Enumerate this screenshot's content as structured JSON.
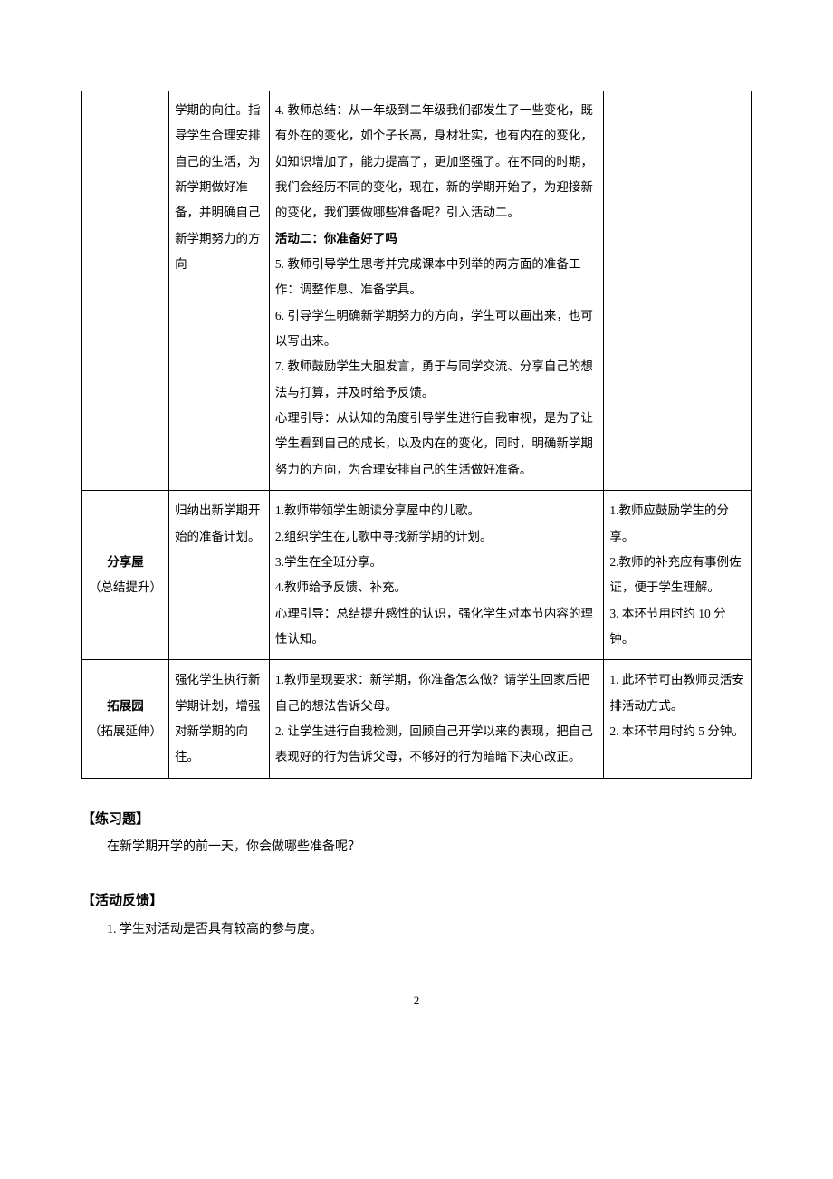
{
  "table": {
    "row1": {
      "col2": "学期的向往。指导学生合理安排自己的生活，为新学期做好准备，并明确自己新学期努力的方向",
      "col3": {
        "item4": "4. 教师总结：从一年级到二年级我们都发生了一些变化，既有外在的变化，如个子长高，身材壮实，也有内在的变化，如知识增加了，能力提高了，更加坚强了。在不同的时期，我们会经历不同的变化，现在，新的学期开始了，为迎接新的变化，我们要做哪些准备呢？引入活动二。",
        "activity_title": "活动二：你准备好了吗",
        "item5": "5. 教师引导学生思考并完成课本中列举的两方面的准备工作：调整作息、准备学具。",
        "item6": "6. 引导学生明确新学期努力的方向，学生可以画出来，也可以写出来。",
        "item7": "7. 教师鼓励学生大胆发言，勇于与同学交流、分享自己的想法与打算，并及时给予反馈。",
        "guide": "心理引导：从认知的角度引导学生进行自我审视，是为了让学生看到自己的成长，以及内在的变化，同时，明确新学期努力的方向，为合理安排自己的生活做好准备。"
      }
    },
    "row2": {
      "col1_title": "分享屋",
      "col1_sub": "（总结提升）",
      "col2": "归纳出新学期开始的准备计划。",
      "col3": {
        "item1": "1.教师带领学生朗读分享屋中的儿歌。",
        "item2": "2.组织学生在儿歌中寻找新学期的计划。",
        "item3": "3.学生在全班分享。",
        "item4": "4.教师给予反馈、补充。",
        "guide": "心理引导：总结提升感性的认识，强化学生对本节内容的理性认知。"
      },
      "col4": {
        "item1": "1.教师应鼓励学生的分享。",
        "item2": "2.教师的补充应有事例佐证，便于学生理解。",
        "item3": "3. 本环节用时约 10 分钟。"
      }
    },
    "row3": {
      "col1_title": "拓展园",
      "col1_sub": "（拓展延伸）",
      "col2": "强化学生执行新学期计划，增强对新学期的向往。",
      "col3": {
        "item1": "1.教师呈现要求：新学期，你准备怎么做？请学生回家后把自己的想法告诉父母。",
        "item2": "2. 让学生进行自我检测，回顾自己开学以来的表现，把自己表现好的行为告诉父母，不够好的行为暗暗下决心改正。"
      },
      "col4": {
        "item1": "1. 此环节可由教师灵活安排活动方式。",
        "item2": "2. 本环节用时约 5 分钟。"
      }
    }
  },
  "sections": {
    "exercise_heading": "【练习题】",
    "exercise_text": "在新学期开学的前一天，你会做哪些准备呢？",
    "feedback_heading": "【活动反馈】",
    "feedback_item1": "1. 学生对活动是否具有较高的参与度。"
  },
  "page_number": "2"
}
